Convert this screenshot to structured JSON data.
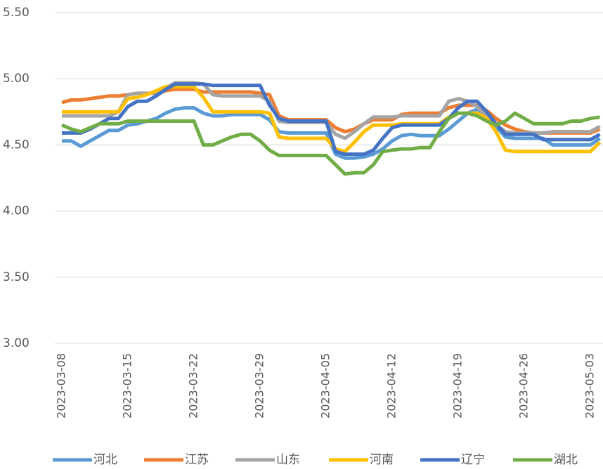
{
  "chart_data": {
    "type": "line",
    "categories": [
      "2023-03-08",
      null,
      null,
      null,
      null,
      null,
      null,
      "2023-03-15",
      null,
      null,
      null,
      null,
      null,
      null,
      "2023-03-22",
      null,
      null,
      null,
      null,
      null,
      null,
      "2023-03-29",
      null,
      null,
      null,
      null,
      null,
      null,
      "2023-04-05",
      null,
      null,
      null,
      null,
      null,
      null,
      "2023-04-12",
      null,
      null,
      null,
      null,
      null,
      null,
      "2023-04-19",
      null,
      null,
      null,
      null,
      null,
      null,
      "2023-04-26",
      null,
      null,
      null,
      null,
      null,
      null,
      "2023-05-03",
      null
    ],
    "ylim": [
      3.0,
      5.5
    ],
    "yticks": [
      {
        "value": 3.0,
        "label": "3.00"
      },
      {
        "value": 3.5,
        "label": "3.50"
      },
      {
        "value": 4.0,
        "label": "4.00"
      },
      {
        "value": 4.5,
        "label": "4.50"
      },
      {
        "value": 5.0,
        "label": "5.00"
      },
      {
        "value": 5.5,
        "label": "5.50"
      }
    ],
    "grid": true,
    "legend": "bottom",
    "series": [
      {
        "name": "河北",
        "color": "#5B9BD5",
        "values": [
          4.53,
          4.53,
          4.49,
          4.53,
          4.57,
          4.61,
          4.61,
          4.65,
          4.66,
          4.68,
          4.7,
          4.74,
          4.77,
          4.78,
          4.78,
          4.74,
          4.72,
          4.72,
          4.73,
          4.73,
          4.73,
          4.73,
          4.69,
          4.6,
          4.59,
          4.59,
          4.59,
          4.59,
          4.59,
          4.43,
          4.4,
          4.4,
          4.41,
          4.43,
          4.47,
          4.53,
          4.57,
          4.58,
          4.57,
          4.57,
          4.57,
          4.62,
          4.68,
          4.74,
          4.77,
          4.73,
          4.64,
          4.56,
          4.55,
          4.55,
          4.55,
          4.55,
          4.5,
          4.5,
          4.5,
          4.5,
          4.5,
          4.55
        ]
      },
      {
        "name": "江苏",
        "color": "#ED7D31",
        "values": [
          4.82,
          4.84,
          4.84,
          4.85,
          4.86,
          4.87,
          4.87,
          4.88,
          4.89,
          4.89,
          4.89,
          4.91,
          4.92,
          4.92,
          4.92,
          4.9,
          4.9,
          4.9,
          4.9,
          4.9,
          4.9,
          4.89,
          4.88,
          4.72,
          4.69,
          4.69,
          4.69,
          4.69,
          4.69,
          4.63,
          4.6,
          4.62,
          4.66,
          4.69,
          4.69,
          4.69,
          4.73,
          4.74,
          4.74,
          4.74,
          4.74,
          4.78,
          4.8,
          4.8,
          4.8,
          4.76,
          4.7,
          4.65,
          4.62,
          4.6,
          4.59,
          4.59,
          4.59,
          4.59,
          4.59,
          4.59,
          4.59,
          4.62
        ]
      },
      {
        "name": "山东",
        "color": "#A5A5A5",
        "values": [
          4.72,
          4.72,
          4.72,
          4.72,
          4.72,
          4.72,
          4.75,
          4.88,
          4.89,
          4.89,
          4.89,
          4.93,
          4.97,
          4.97,
          4.97,
          4.96,
          4.88,
          4.87,
          4.87,
          4.87,
          4.87,
          4.87,
          4.83,
          4.68,
          4.67,
          4.67,
          4.67,
          4.67,
          4.67,
          4.58,
          4.55,
          4.6,
          4.66,
          4.71,
          4.71,
          4.71,
          4.72,
          4.72,
          4.72,
          4.72,
          4.72,
          4.83,
          4.85,
          4.83,
          4.79,
          4.72,
          4.65,
          4.6,
          4.59,
          4.59,
          4.59,
          4.59,
          4.6,
          4.6,
          4.6,
          4.6,
          4.6,
          4.64
        ]
      },
      {
        "name": "河南",
        "color": "#FFC000",
        "values": [
          4.75,
          4.75,
          4.75,
          4.75,
          4.75,
          4.75,
          4.75,
          4.85,
          4.86,
          4.88,
          4.91,
          4.94,
          4.94,
          4.94,
          4.94,
          4.86,
          4.75,
          4.75,
          4.75,
          4.75,
          4.75,
          4.75,
          4.74,
          4.56,
          4.55,
          4.55,
          4.55,
          4.55,
          4.55,
          4.47,
          4.45,
          4.52,
          4.6,
          4.65,
          4.65,
          4.65,
          4.66,
          4.66,
          4.66,
          4.66,
          4.66,
          4.71,
          4.74,
          4.74,
          4.74,
          4.7,
          4.6,
          4.46,
          4.45,
          4.45,
          4.45,
          4.45,
          4.45,
          4.45,
          4.45,
          4.45,
          4.45,
          4.52
        ]
      },
      {
        "name": "辽宁",
        "color": "#4472C4",
        "values": [
          4.59,
          4.59,
          4.59,
          4.62,
          4.66,
          4.7,
          4.7,
          4.79,
          4.83,
          4.83,
          4.87,
          4.92,
          4.96,
          4.96,
          4.96,
          4.96,
          4.95,
          4.95,
          4.95,
          4.95,
          4.95,
          4.95,
          4.8,
          4.7,
          4.68,
          4.68,
          4.68,
          4.68,
          4.68,
          4.45,
          4.43,
          4.43,
          4.43,
          4.46,
          4.55,
          4.63,
          4.65,
          4.65,
          4.65,
          4.65,
          4.65,
          4.7,
          4.78,
          4.83,
          4.83,
          4.75,
          4.66,
          4.58,
          4.58,
          4.58,
          4.58,
          4.54,
          4.54,
          4.54,
          4.54,
          4.54,
          4.54,
          4.58
        ]
      },
      {
        "name": "湖北",
        "color": "#70AD47",
        "values": [
          4.65,
          4.62,
          4.6,
          4.63,
          4.66,
          4.66,
          4.66,
          4.68,
          4.68,
          4.68,
          4.68,
          4.68,
          4.68,
          4.68,
          4.68,
          4.5,
          4.5,
          4.53,
          4.56,
          4.58,
          4.58,
          4.53,
          4.46,
          4.42,
          4.42,
          4.42,
          4.42,
          4.42,
          4.42,
          4.35,
          4.28,
          4.29,
          4.29,
          4.35,
          4.45,
          4.46,
          4.47,
          4.47,
          4.48,
          4.48,
          4.6,
          4.7,
          4.74,
          4.74,
          4.72,
          4.68,
          4.65,
          4.68,
          4.74,
          4.7,
          4.66,
          4.66,
          4.66,
          4.66,
          4.68,
          4.68,
          4.7,
          4.71
        ]
      }
    ]
  }
}
